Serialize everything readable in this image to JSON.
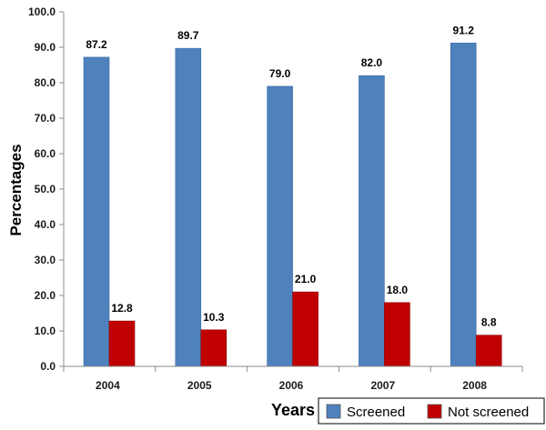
{
  "chart_data": {
    "type": "bar",
    "title": "",
    "xlabel": "Years",
    "ylabel": "Percentages",
    "categories": [
      "2004",
      "2005",
      "2006",
      "2007",
      "2008"
    ],
    "series": [
      {
        "name": "Screened",
        "values": [
          87.2,
          89.7,
          79.0,
          82.0,
          91.2
        ],
        "color": "#4f81bd"
      },
      {
        "name": "Not screened",
        "values": [
          12.8,
          10.3,
          21.0,
          18.0,
          8.8
        ],
        "color": "#c00000"
      }
    ],
    "ylim": [
      0,
      100
    ],
    "yticks": [
      "0.0",
      "10.0",
      "20.0",
      "30.0",
      "40.0",
      "50.0",
      "60.0",
      "70.0",
      "80.0",
      "90.0",
      "100.0"
    ],
    "data_labels": [
      [
        "87.2",
        "89.7",
        "79.0",
        "82.0",
        "91.2"
      ],
      [
        "12.8",
        "10.3",
        "21.0",
        "18.0",
        "8.8"
      ]
    ],
    "grid": false,
    "legend_position": "bottom-right"
  }
}
